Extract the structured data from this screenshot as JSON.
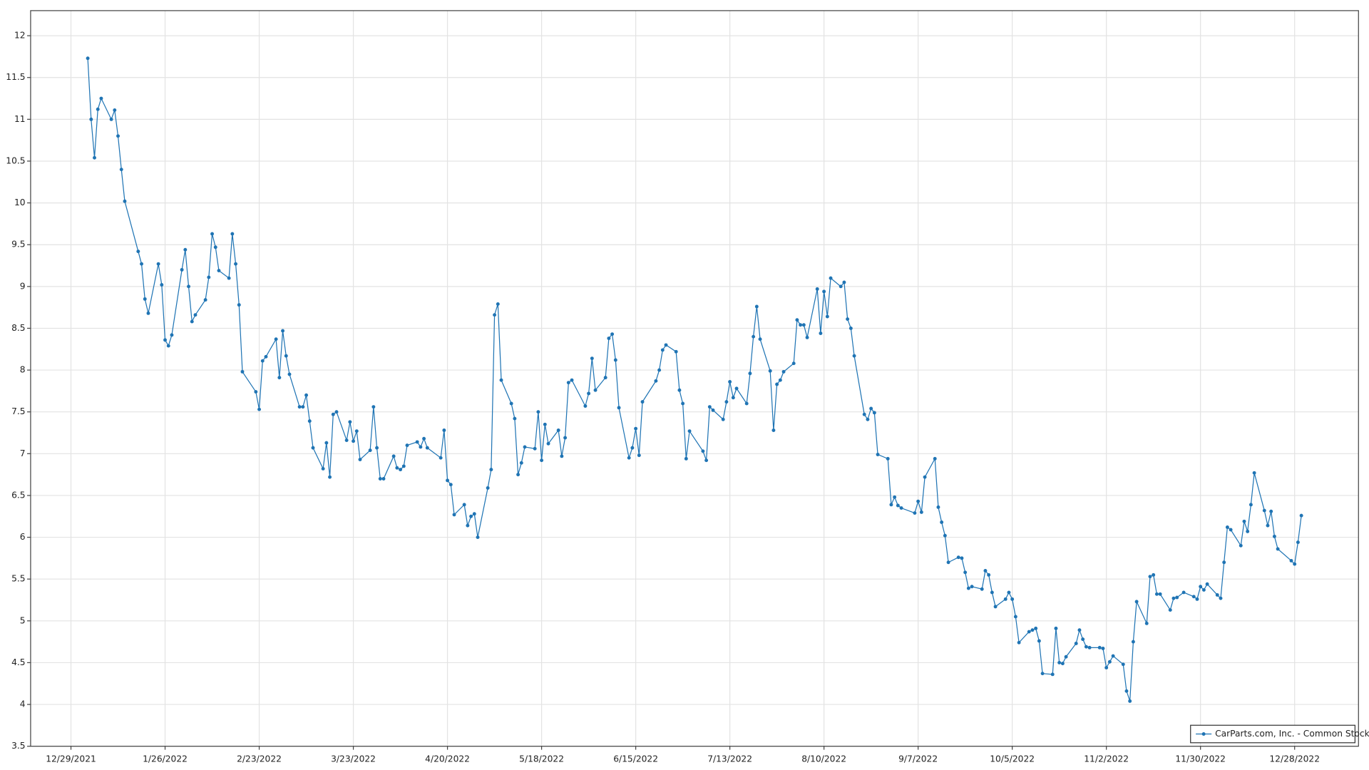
{
  "chart_data": {
    "type": "line",
    "x": [
      "1/3/2022",
      "1/4/2022",
      "1/5/2022",
      "1/6/2022",
      "1/7/2022",
      "1/10/2022",
      "1/11/2022",
      "1/12/2022",
      "1/13/2022",
      "1/14/2022",
      "1/18/2022",
      "1/19/2022",
      "1/20/2022",
      "1/21/2022",
      "1/24/2022",
      "1/25/2022",
      "1/26/2022",
      "1/27/2022",
      "1/28/2022",
      "1/31/2022",
      "2/1/2022",
      "2/2/2022",
      "2/3/2022",
      "2/4/2022",
      "2/7/2022",
      "2/8/2022",
      "2/9/2022",
      "2/10/2022",
      "2/11/2022",
      "2/14/2022",
      "2/15/2022",
      "2/16/2022",
      "2/17/2022",
      "2/18/2022",
      "2/22/2022",
      "2/23/2022",
      "2/24/2022",
      "2/25/2022",
      "2/28/2022",
      "3/1/2022",
      "3/2/2022",
      "3/3/2022",
      "3/4/2022",
      "3/7/2022",
      "3/8/2022",
      "3/9/2022",
      "3/10/2022",
      "3/11/2022",
      "3/14/2022",
      "3/15/2022",
      "3/16/2022",
      "3/17/2022",
      "3/18/2022",
      "3/21/2022",
      "3/22/2022",
      "3/23/2022",
      "3/24/2022",
      "3/25/2022",
      "3/28/2022",
      "3/29/2022",
      "3/30/2022",
      "3/31/2022",
      "4/1/2022",
      "4/4/2022",
      "4/5/2022",
      "4/6/2022",
      "4/7/2022",
      "4/8/2022",
      "4/11/2022",
      "4/12/2022",
      "4/13/2022",
      "4/14/2022",
      "4/18/2022",
      "4/19/2022",
      "4/20/2022",
      "4/21/2022",
      "4/22/2022",
      "4/25/2022",
      "4/26/2022",
      "4/27/2022",
      "4/28/2022",
      "4/29/2022",
      "5/2/2022",
      "5/3/2022",
      "5/4/2022",
      "5/5/2022",
      "5/6/2022",
      "5/9/2022",
      "5/10/2022",
      "5/11/2022",
      "5/12/2022",
      "5/13/2022",
      "5/16/2022",
      "5/17/2022",
      "5/18/2022",
      "5/19/2022",
      "5/20/2022",
      "5/23/2022",
      "5/24/2022",
      "5/25/2022",
      "5/26/2022",
      "5/27/2022",
      "5/31/2022",
      "6/1/2022",
      "6/2/2022",
      "6/3/2022",
      "6/6/2022",
      "6/7/2022",
      "6/8/2022",
      "6/9/2022",
      "6/10/2022",
      "6/13/2022",
      "6/14/2022",
      "6/15/2022",
      "6/16/2022",
      "6/17/2022",
      "6/21/2022",
      "6/22/2022",
      "6/23/2022",
      "6/24/2022",
      "6/27/2022",
      "6/28/2022",
      "6/29/2022",
      "6/30/2022",
      "7/1/2022",
      "7/5/2022",
      "7/6/2022",
      "7/7/2022",
      "7/8/2022",
      "7/11/2022",
      "7/12/2022",
      "7/13/2022",
      "7/14/2022",
      "7/15/2022",
      "7/18/2022",
      "7/19/2022",
      "7/20/2022",
      "7/21/2022",
      "7/22/2022",
      "7/25/2022",
      "7/26/2022",
      "7/27/2022",
      "7/28/2022",
      "7/29/2022",
      "8/1/2022",
      "8/2/2022",
      "8/3/2022",
      "8/4/2022",
      "8/5/2022",
      "8/8/2022",
      "8/9/2022",
      "8/10/2022",
      "8/11/2022",
      "8/12/2022",
      "8/15/2022",
      "8/16/2022",
      "8/17/2022",
      "8/18/2022",
      "8/19/2022",
      "8/22/2022",
      "8/23/2022",
      "8/24/2022",
      "8/25/2022",
      "8/26/2022",
      "8/29/2022",
      "8/30/2022",
      "8/31/2022",
      "9/1/2022",
      "9/2/2022",
      "9/6/2022",
      "9/7/2022",
      "9/8/2022",
      "9/9/2022",
      "9/12/2022",
      "9/13/2022",
      "9/14/2022",
      "9/15/2022",
      "9/16/2022",
      "9/19/2022",
      "9/20/2022",
      "9/21/2022",
      "9/22/2022",
      "9/23/2022",
      "9/26/2022",
      "9/27/2022",
      "9/28/2022",
      "9/29/2022",
      "9/30/2022",
      "10/3/2022",
      "10/4/2022",
      "10/5/2022",
      "10/6/2022",
      "10/7/2022",
      "10/10/2022",
      "10/11/2022",
      "10/12/2022",
      "10/13/2022",
      "10/14/2022",
      "10/17/2022",
      "10/18/2022",
      "10/19/2022",
      "10/20/2022",
      "10/21/2022",
      "10/24/2022",
      "10/25/2022",
      "10/26/2022",
      "10/27/2022",
      "10/28/2022",
      "10/31/2022",
      "11/1/2022",
      "11/2/2022",
      "11/3/2022",
      "11/4/2022",
      "11/7/2022",
      "11/8/2022",
      "11/9/2022",
      "11/10/2022",
      "11/11/2022",
      "11/14/2022",
      "11/15/2022",
      "11/16/2022",
      "11/17/2022",
      "11/18/2022",
      "11/21/2022",
      "11/22/2022",
      "11/23/2022",
      "11/25/2022",
      "11/28/2022",
      "11/29/2022",
      "11/30/2022",
      "12/1/2022",
      "12/2/2022",
      "12/5/2022",
      "12/6/2022",
      "12/7/2022",
      "12/8/2022",
      "12/9/2022",
      "12/12/2022",
      "12/13/2022",
      "12/14/2022",
      "12/15/2022",
      "12/16/2022",
      "12/19/2022",
      "12/20/2022",
      "12/21/2022",
      "12/22/2022",
      "12/23/2022",
      "12/27/2022",
      "12/28/2022",
      "12/29/2022",
      "12/30/2022"
    ],
    "series": [
      {
        "name": "CarParts.com, Inc. - Common Stock",
        "color": "#1f74b4",
        "values": [
          11.73,
          11.0,
          10.54,
          11.12,
          11.25,
          11.0,
          11.11,
          10.8,
          10.4,
          10.02,
          9.42,
          9.27,
          8.85,
          8.68,
          9.27,
          9.02,
          8.36,
          8.29,
          8.42,
          9.2,
          9.44,
          9.0,
          8.58,
          8.66,
          8.84,
          9.11,
          9.63,
          9.47,
          9.19,
          9.1,
          9.63,
          9.27,
          8.78,
          7.98,
          7.74,
          7.53,
          8.11,
          8.16,
          8.37,
          7.91,
          8.47,
          8.17,
          7.95,
          7.56,
          7.56,
          7.7,
          7.39,
          7.07,
          6.82,
          7.13,
          6.72,
          7.47,
          7.5,
          7.16,
          7.38,
          7.15,
          7.27,
          6.93,
          7.04,
          7.56,
          7.07,
          6.7,
          6.7,
          6.97,
          6.83,
          6.81,
          6.85,
          7.1,
          7.14,
          7.08,
          7.18,
          7.07,
          6.95,
          7.28,
          6.68,
          6.63,
          6.27,
          6.39,
          6.14,
          6.25,
          6.28,
          6.0,
          6.59,
          6.81,
          8.66,
          8.79,
          7.88,
          7.6,
          7.42,
          6.75,
          6.89,
          7.08,
          7.06,
          7.5,
          6.92,
          7.35,
          7.12,
          7.28,
          6.97,
          7.19,
          7.85,
          7.88,
          7.57,
          7.72,
          8.14,
          7.76,
          7.91,
          8.38,
          8.43,
          8.12,
          7.55,
          6.95,
          7.07,
          7.3,
          6.98,
          7.62,
          7.87,
          8.0,
          8.24,
          8.3,
          8.22,
          7.76,
          7.6,
          6.94,
          7.27,
          7.03,
          6.92,
          7.56,
          7.52,
          7.41,
          7.62,
          7.86,
          7.67,
          7.78,
          7.6,
          7.96,
          8.4,
          8.76,
          8.37,
          7.99,
          7.28,
          7.83,
          7.88,
          7.98,
          8.08,
          8.6,
          8.54,
          8.54,
          8.39,
          8.97,
          8.44,
          8.94,
          8.64,
          9.1,
          9.0,
          9.05,
          8.61,
          8.5,
          8.17,
          7.47,
          7.41,
          7.54,
          7.49,
          6.99,
          6.94,
          6.39,
          6.48,
          6.38,
          6.35,
          6.29,
          6.43,
          6.3,
          6.72,
          6.94,
          6.36,
          6.18,
          6.02,
          5.7,
          5.76,
          5.75,
          5.58,
          5.39,
          5.41,
          5.38,
          5.6,
          5.55,
          5.34,
          5.17,
          5.26,
          5.34,
          5.26,
          5.05,
          4.74,
          4.87,
          4.89,
          4.91,
          4.76,
          4.37,
          4.36,
          4.91,
          4.5,
          4.49,
          4.57,
          4.73,
          4.89,
          4.78,
          4.69,
          4.68,
          4.68,
          4.67,
          4.44,
          4.51,
          4.58,
          4.48,
          4.16,
          4.04,
          4.75,
          5.23,
          4.97,
          5.53,
          5.55,
          5.32,
          5.32,
          5.13,
          5.27,
          5.28,
          5.34,
          5.29,
          5.26,
          5.41,
          5.37,
          5.44,
          5.31,
          5.27,
          5.7,
          6.12,
          6.09,
          5.9,
          6.19,
          6.07,
          6.39,
          6.77,
          6.32,
          6.14,
          6.31,
          6.01,
          5.86,
          5.72,
          5.68,
          5.94,
          6.26
        ]
      }
    ],
    "xlim": [
      "12/17/2021",
      "1/16/2023"
    ],
    "xticks": [
      "12/29/2021",
      "1/26/2022",
      "2/23/2022",
      "3/23/2022",
      "4/20/2022",
      "5/18/2022",
      "6/15/2022",
      "7/13/2022",
      "8/10/2022",
      "9/7/2022",
      "10/5/2022",
      "11/2/2022",
      "11/30/2022",
      "12/28/2022"
    ],
    "ylim": [
      3.5,
      12.3
    ],
    "yticks": [
      3.5,
      4,
      4.5,
      5,
      5.5,
      6,
      6.5,
      7,
      7.5,
      8,
      8.5,
      9,
      9.5,
      10,
      10.5,
      11,
      11.5,
      12
    ],
    "grid": true,
    "legend": "lower right"
  }
}
